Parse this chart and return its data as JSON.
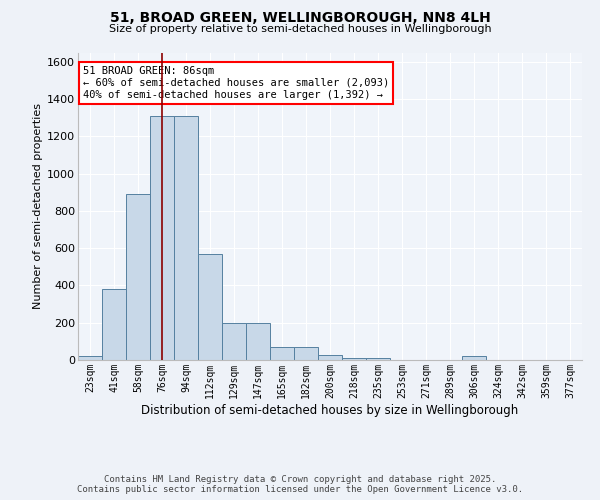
{
  "title1": "51, BROAD GREEN, WELLINGBOROUGH, NN8 4LH",
  "title2": "Size of property relative to semi-detached houses in Wellingborough",
  "xlabel": "Distribution of semi-detached houses by size in Wellingborough",
  "ylabel": "Number of semi-detached properties",
  "categories": [
    "23sqm",
    "41sqm",
    "58sqm",
    "76sqm",
    "94sqm",
    "112sqm",
    "129sqm",
    "147sqm",
    "165sqm",
    "182sqm",
    "200sqm",
    "218sqm",
    "235sqm",
    "253sqm",
    "271sqm",
    "289sqm",
    "306sqm",
    "324sqm",
    "342sqm",
    "359sqm",
    "377sqm"
  ],
  "values": [
    20,
    380,
    890,
    1310,
    1310,
    570,
    200,
    200,
    70,
    70,
    25,
    10,
    10,
    0,
    0,
    0,
    20,
    0,
    0,
    0,
    0
  ],
  "bar_color": "#c8d8e8",
  "bar_edge_color": "#5580a0",
  "vline_x": 3,
  "vline_color": "#8b0000",
  "annotation_text": "51 BROAD GREEN: 86sqm\n← 60% of semi-detached houses are smaller (2,093)\n40% of semi-detached houses are larger (1,392) →",
  "annotation_box_color": "white",
  "annotation_border_color": "red",
  "ylim": [
    0,
    1650
  ],
  "yticks": [
    0,
    200,
    400,
    600,
    800,
    1000,
    1200,
    1400,
    1600
  ],
  "bg_color": "#eef2f8",
  "plot_bg_color": "#f0f4fa",
  "grid_color": "white",
  "footer1": "Contains HM Land Registry data © Crown copyright and database right 2025.",
  "footer2": "Contains public sector information licensed under the Open Government Licence v3.0."
}
